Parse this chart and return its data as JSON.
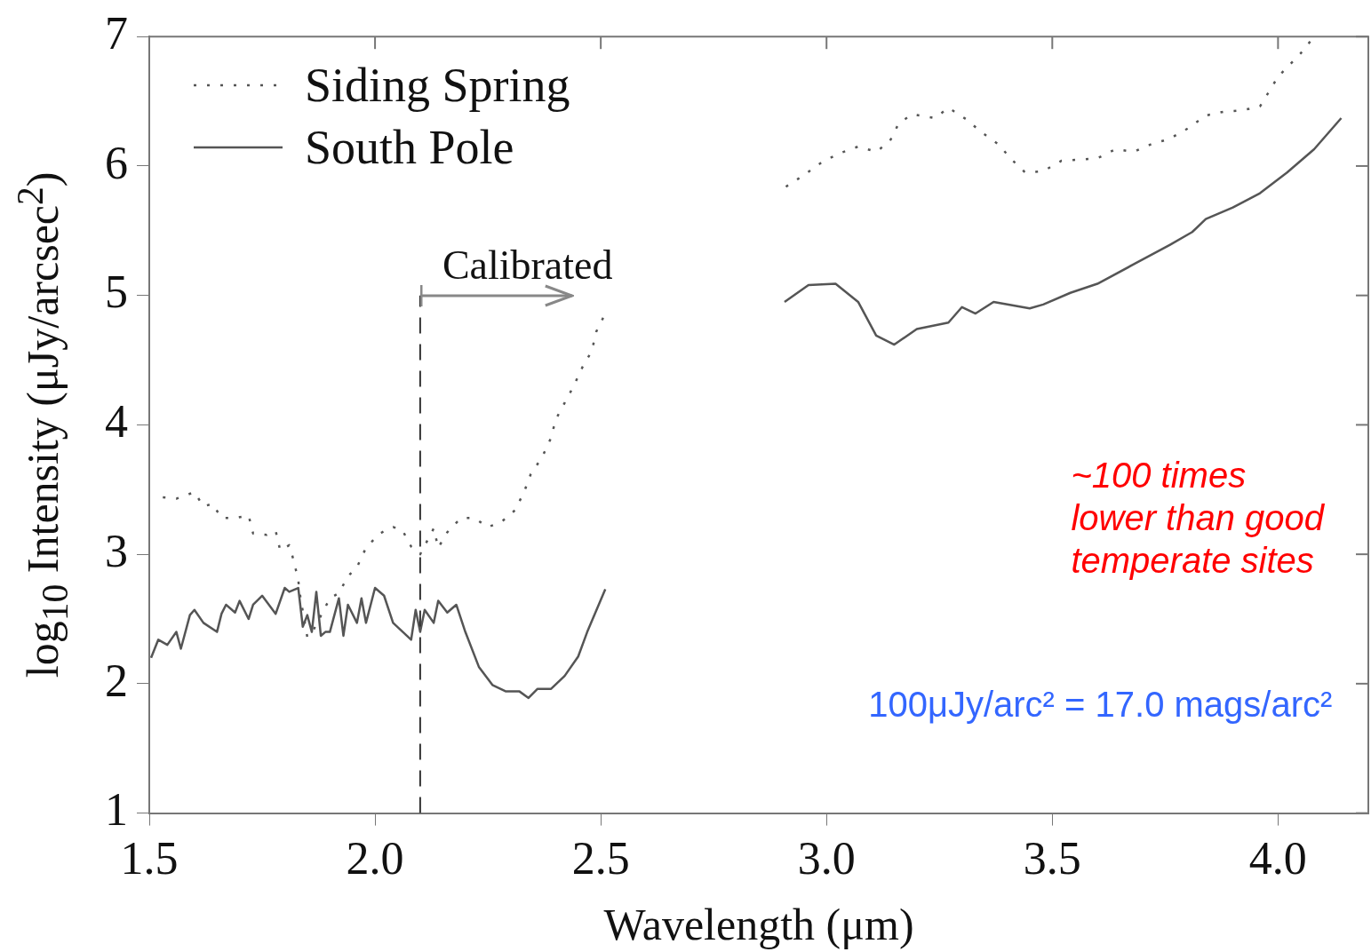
{
  "chart_data": {
    "type": "line",
    "xlabel": "Wavelength (μm)",
    "ylabel": "log$_{10}$ Intensity (μJy/arcsec$^{2}$)",
    "xlim": [
      1.5,
      4.2
    ],
    "ylim": [
      1,
      7
    ],
    "xticks": [
      1.5,
      {
        "value": 2,
        "label": "2.0"
      },
      2.5,
      {
        "value": 3,
        "label": "3.0"
      },
      3.5,
      {
        "value": 4,
        "label": "4.0"
      }
    ],
    "yticks": [
      1,
      2,
      3,
      4,
      5,
      6,
      7
    ],
    "grid": false,
    "legend": "top left",
    "marker": "none",
    "series": [
      {
        "name": "Siding Spring",
        "color": "#555555",
        "line_style": "dotted",
        "x": [
          1.53,
          1.56,
          1.6,
          1.62,
          1.64,
          1.66,
          1.69,
          1.72,
          1.73,
          1.76,
          1.78,
          1.79,
          1.81,
          1.82,
          1.83,
          1.835,
          1.85,
          1.86,
          1.9,
          1.92,
          1.94,
          1.96,
          1.98,
          2.01,
          2.04,
          2.06,
          2.08,
          2.1,
          2.13,
          2.14,
          2.16,
          2.19,
          2.22,
          2.25,
          2.28,
          2.31,
          2.33,
          2.345,
          2.37,
          2.39,
          2.4,
          2.42,
          2.44,
          2.46,
          2.48,
          2.49,
          2.51,
          2.7,
          2.91,
          2.95,
          2.99,
          3.03,
          3.07,
          3.11,
          3.14,
          3.16,
          3.19,
          3.24,
          3.27,
          3.31,
          3.34,
          3.38,
          3.41,
          3.44,
          3.48,
          3.52,
          3.56,
          3.6,
          3.64,
          3.68,
          3.72,
          3.76,
          3.8,
          3.84,
          3.88,
          3.92,
          3.96,
          4.0,
          4.05,
          4.08
        ],
        "values": [
          3.44,
          3.43,
          3.48,
          3.37,
          3.39,
          3.28,
          3.28,
          3.3,
          3.16,
          3.15,
          3.18,
          3.03,
          3.07,
          2.95,
          2.8,
          2.66,
          2.36,
          2.39,
          2.66,
          2.7,
          2.83,
          2.9,
          3.05,
          3.16,
          3.21,
          3.19,
          3.06,
          3.0,
          3.2,
          3.05,
          3.17,
          3.28,
          3.28,
          3.21,
          3.25,
          3.34,
          3.48,
          3.62,
          3.75,
          3.9,
          4.04,
          4.17,
          4.3,
          4.45,
          4.57,
          4.72,
          4.86,
          null,
          5.84,
          5.93,
          6.03,
          6.1,
          6.15,
          6.11,
          6.19,
          6.33,
          6.4,
          6.37,
          6.45,
          6.36,
          6.27,
          6.17,
          6.05,
          5.95,
          5.96,
          6.04,
          6.05,
          6.06,
          6.13,
          6.11,
          6.17,
          6.21,
          6.29,
          6.39,
          6.42,
          6.43,
          6.46,
          6.69,
          6.87,
          7.0
        ]
      },
      {
        "name": "South Pole",
        "color": "#555555",
        "line_style": "solid",
        "x": [
          1.504,
          1.52,
          1.54,
          1.56,
          1.57,
          1.59,
          1.6,
          1.62,
          1.65,
          1.66,
          1.67,
          1.69,
          1.7,
          1.72,
          1.73,
          1.75,
          1.78,
          1.8,
          1.81,
          1.83,
          1.84,
          1.85,
          1.86,
          1.87,
          1.88,
          1.89,
          1.9,
          1.92,
          1.93,
          1.94,
          1.96,
          1.97,
          1.98,
          2.0,
          2.02,
          2.04,
          2.08,
          2.09,
          2.1,
          2.11,
          2.13,
          2.14,
          2.16,
          2.18,
          2.2,
          2.23,
          2.26,
          2.29,
          2.32,
          2.34,
          2.36,
          2.39,
          2.42,
          2.45,
          2.47,
          2.51,
          2.7,
          2.907,
          2.96,
          3.02,
          3.07,
          3.11,
          3.15,
          3.2,
          3.27,
          3.3,
          3.33,
          3.37,
          3.45,
          3.48,
          3.54,
          3.6,
          3.68,
          3.76,
          3.81,
          3.84,
          3.9,
          3.96,
          4.02,
          4.08,
          4.14
        ],
        "values": [
          2.2,
          2.34,
          2.3,
          2.4,
          2.27,
          2.53,
          2.57,
          2.47,
          2.4,
          2.54,
          2.61,
          2.55,
          2.64,
          2.5,
          2.61,
          2.68,
          2.54,
          2.74,
          2.71,
          2.74,
          2.44,
          2.53,
          2.4,
          2.71,
          2.37,
          2.4,
          2.4,
          2.66,
          2.37,
          2.61,
          2.47,
          2.66,
          2.47,
          2.74,
          2.68,
          2.47,
          2.34,
          2.57,
          2.4,
          2.57,
          2.47,
          2.64,
          2.55,
          2.61,
          2.4,
          2.13,
          1.99,
          1.94,
          1.94,
          1.89,
          1.96,
          1.96,
          2.06,
          2.21,
          2.4,
          2.73,
          null,
          4.95,
          5.08,
          5.09,
          4.95,
          4.69,
          4.62,
          4.74,
          4.79,
          4.91,
          4.86,
          4.95,
          4.9,
          4.93,
          5.02,
          5.09,
          5.24,
          5.39,
          5.49,
          5.59,
          5.68,
          5.79,
          5.95,
          6.13,
          6.37
        ]
      }
    ],
    "ref_lines": [
      {
        "axis": "x",
        "value": 2.1,
        "line_style": "dashed",
        "color": "#333333"
      }
    ],
    "annotations": [
      {
        "text": "Calibrated",
        "x": 2.1,
        "y": 5.0
      },
      "~100 times\nlower than good\ntemperate sites",
      "100μJy/arc² = 17.0 mags/arc²"
    ]
  }
}
